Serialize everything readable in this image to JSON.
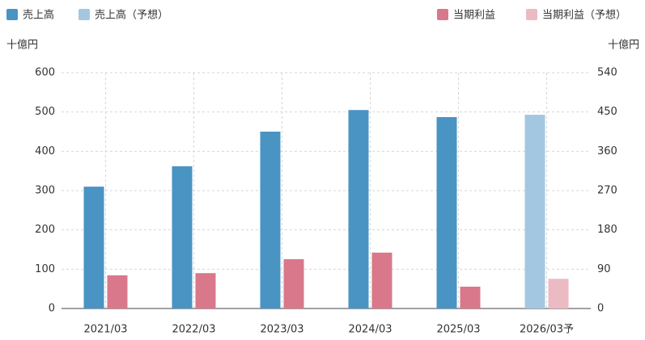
{
  "chart_data": {
    "type": "bar",
    "y_label": "十億円",
    "y2_label": "十億円",
    "categories": [
      "2021/03",
      "2022/03",
      "2023/03",
      "2024/03",
      "2025/03",
      "2026/03予"
    ],
    "series": [
      {
        "name": "売上高",
        "color": "#4a94c4",
        "values": [
          310,
          362,
          450,
          505,
          487,
          null
        ]
      },
      {
        "name": "売上高（予想）",
        "color": "#a3c7e0",
        "values": [
          null,
          null,
          null,
          null,
          null,
          493
        ]
      },
      {
        "name": "当期利益",
        "color": "#d9788a",
        "axis": "y2",
        "values": [
          76,
          81,
          113,
          128,
          50,
          null
        ]
      },
      {
        "name": "当期利益（予想）",
        "color": "#ebbac3",
        "axis": "y2",
        "values": [
          null,
          null,
          null,
          null,
          null,
          68
        ]
      }
    ],
    "ylim": [
      0,
      600
    ],
    "yticks": [
      0,
      100,
      200,
      300,
      400,
      500,
      600
    ],
    "y2lim": [
      0,
      540
    ],
    "y2ticks": [
      0,
      90,
      180,
      270,
      360,
      450,
      540
    ],
    "grid": true
  }
}
